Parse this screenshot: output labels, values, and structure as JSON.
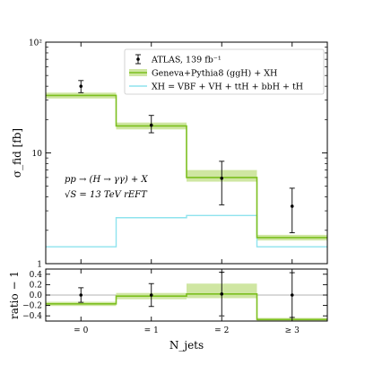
{
  "chart_data": {
    "type": "histogram-with-ratio",
    "categories": [
      "= 0",
      "= 1",
      "= 2",
      "≥ 3"
    ],
    "xlabel": "N_jets",
    "top": {
      "ylabel": "σ_fid  [fb]",
      "yscale": "log",
      "ylim": [
        1,
        100
      ],
      "ytick_labels": [
        "1",
        "10",
        "10²"
      ],
      "series": [
        {
          "name": "ATLAS, 139 fb⁻¹",
          "kind": "points",
          "values": [
            40,
            17.8,
            5.9,
            3.3
          ],
          "err_low": [
            5,
            2.6,
            2.5,
            1.4
          ],
          "err_high": [
            5,
            4,
            2.5,
            1.5
          ],
          "color": "#000000"
        },
        {
          "name": "Geneva+Pythia8 (ggH) + XH",
          "kind": "step-band",
          "values": [
            33,
            17.5,
            6.0,
            1.72
          ],
          "band_low": [
            31,
            16.3,
            5.5,
            1.62
          ],
          "band_high": [
            35,
            18.8,
            7.0,
            1.82
          ],
          "color": "#7cbf1f",
          "band_color": "#cfe6a2"
        },
        {
          "name": "XH = VBF + VH + ttH + bbH + tH",
          "kind": "step",
          "values": [
            1.42,
            2.6,
            2.72,
            1.42
          ],
          "color": "#8fe3ee"
        }
      ],
      "annotation_lines": [
        "pp → (H → γγ) + X",
        "√S = 13 TeV   rEFT"
      ]
    },
    "bottom": {
      "ylabel": "ratio − 1",
      "ylim": [
        -0.5,
        0.5
      ],
      "ytick_labels": [
        "0.4",
        "0.2",
        "0.0",
        "−0.2",
        "−0.4"
      ],
      "ytick_values": [
        0.4,
        0.2,
        0.0,
        -0.2,
        -0.4
      ],
      "points": [
        0.0,
        0.0,
        0.02,
        0.0
      ],
      "points_err": [
        0.14,
        0.22,
        0.42,
        0.43
      ],
      "step": [
        -0.17,
        -0.02,
        0.02,
        -0.47
      ],
      "band_low": [
        -0.21,
        -0.08,
        -0.06,
        -0.5
      ],
      "band_high": [
        -0.13,
        0.04,
        0.22,
        -0.44
      ]
    }
  }
}
